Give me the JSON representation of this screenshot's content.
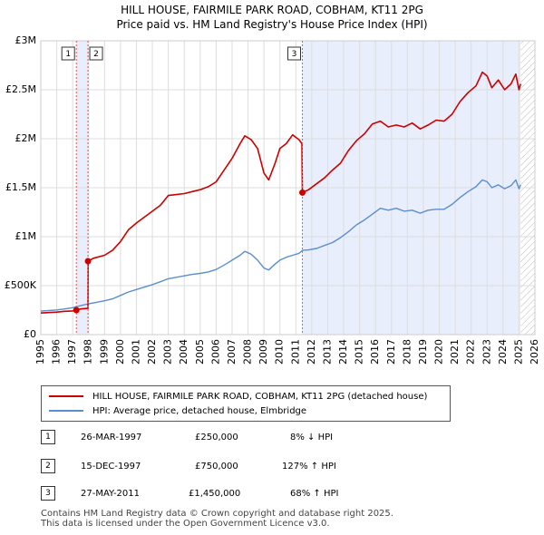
{
  "title_line1": "HILL HOUSE, FAIRMILE PARK ROAD, COBHAM, KT11 2PG",
  "title_line2": "Price paid vs. HM Land Registry's House Price Index (HPI)",
  "chart_data": {
    "type": "line",
    "xlim": [
      1995,
      2026
    ],
    "ylim": [
      0,
      3000000
    ],
    "x_ticks": [
      1995,
      1996,
      1997,
      1998,
      1999,
      2000,
      2001,
      2002,
      2003,
      2004,
      2005,
      2006,
      2007,
      2008,
      2009,
      2010,
      2011,
      2012,
      2013,
      2014,
      2015,
      2016,
      2017,
      2018,
      2019,
      2020,
      2021,
      2022,
      2023,
      2024,
      2025,
      2026
    ],
    "y_ticks": [
      {
        "value": 0,
        "label": "£0"
      },
      {
        "value": 500000,
        "label": "£500K"
      },
      {
        "value": 1000000,
        "label": "£1M"
      },
      {
        "value": 1500000,
        "label": "£1.5M"
      },
      {
        "value": 2000000,
        "label": "£2M"
      },
      {
        "value": 2500000,
        "label": "£2.5M"
      },
      {
        "value": 3000000,
        "label": "£3M"
      }
    ],
    "grid": true,
    "shaded_ranges": [
      {
        "from": 1997.23,
        "to": 1997.96
      },
      {
        "from": 2011.41,
        "to": 2025.1
      }
    ],
    "hatched_range": {
      "from": 2025.1,
      "to": 2026
    },
    "markers": [
      {
        "label": "1",
        "x": 1997.23
      },
      {
        "label": "2",
        "x": 1997.96
      },
      {
        "label": "3",
        "x": 2011.41
      }
    ],
    "sale_points": [
      {
        "x": 1997.23,
        "y": 250000
      },
      {
        "x": 1997.96,
        "y": 750000
      },
      {
        "x": 2011.41,
        "y": 1450000
      }
    ],
    "series": [
      {
        "name": "HILL HOUSE, FAIRMILE PARK ROAD, COBHAM, KT11 2PG (detached house)",
        "color": "#cc0000",
        "points": [
          [
            1995,
            220000
          ],
          [
            1995.5,
            225000
          ],
          [
            1996,
            230000
          ],
          [
            1996.5,
            238000
          ],
          [
            1997.0,
            242000
          ],
          [
            1997.23,
            250000
          ],
          [
            1997.5,
            262000
          ],
          [
            1997.96,
            268000
          ],
          [
            1997.97,
            750000
          ],
          [
            1998.3,
            780000
          ],
          [
            1999,
            810000
          ],
          [
            1999.5,
            860000
          ],
          [
            2000,
            950000
          ],
          [
            2000.5,
            1070000
          ],
          [
            2001,
            1140000
          ],
          [
            2001.5,
            1200000
          ],
          [
            2002,
            1260000
          ],
          [
            2002.5,
            1320000
          ],
          [
            2003,
            1420000
          ],
          [
            2003.5,
            1430000
          ],
          [
            2004,
            1440000
          ],
          [
            2004.5,
            1460000
          ],
          [
            2005,
            1480000
          ],
          [
            2005.5,
            1510000
          ],
          [
            2006,
            1560000
          ],
          [
            2006.5,
            1680000
          ],
          [
            2007,
            1800000
          ],
          [
            2007.5,
            1950000
          ],
          [
            2007.8,
            2030000
          ],
          [
            2008.2,
            1990000
          ],
          [
            2008.6,
            1900000
          ],
          [
            2009.0,
            1650000
          ],
          [
            2009.3,
            1580000
          ],
          [
            2009.7,
            1750000
          ],
          [
            2010,
            1900000
          ],
          [
            2010.4,
            1950000
          ],
          [
            2010.8,
            2040000
          ],
          [
            2011.2,
            1990000
          ],
          [
            2011.38,
            1950000
          ],
          [
            2011.41,
            1450000
          ],
          [
            2011.8,
            1480000
          ],
          [
            2012.3,
            1540000
          ],
          [
            2012.8,
            1600000
          ],
          [
            2013.3,
            1680000
          ],
          [
            2013.8,
            1750000
          ],
          [
            2014.3,
            1880000
          ],
          [
            2014.8,
            1980000
          ],
          [
            2015.3,
            2050000
          ],
          [
            2015.8,
            2150000
          ],
          [
            2016.3,
            2180000
          ],
          [
            2016.8,
            2120000
          ],
          [
            2017.3,
            2140000
          ],
          [
            2017.8,
            2120000
          ],
          [
            2018.3,
            2160000
          ],
          [
            2018.8,
            2100000
          ],
          [
            2019.3,
            2140000
          ],
          [
            2019.8,
            2190000
          ],
          [
            2020.3,
            2180000
          ],
          [
            2020.8,
            2250000
          ],
          [
            2021.3,
            2380000
          ],
          [
            2021.8,
            2470000
          ],
          [
            2022.3,
            2540000
          ],
          [
            2022.7,
            2680000
          ],
          [
            2023.0,
            2640000
          ],
          [
            2023.3,
            2520000
          ],
          [
            2023.7,
            2600000
          ],
          [
            2024.1,
            2500000
          ],
          [
            2024.5,
            2560000
          ],
          [
            2024.8,
            2660000
          ],
          [
            2025.0,
            2500000
          ],
          [
            2025.1,
            2560000
          ]
        ]
      },
      {
        "name": "HPI: Average price, detached house, Elmbridge",
        "color": "#5b8ecf",
        "points": [
          [
            1995,
            240000
          ],
          [
            1995.5,
            245000
          ],
          [
            1996,
            252000
          ],
          [
            1996.5,
            262000
          ],
          [
            1997,
            275000
          ],
          [
            1997.5,
            295000
          ],
          [
            1998,
            315000
          ],
          [
            1998.5,
            330000
          ],
          [
            1999,
            345000
          ],
          [
            1999.5,
            365000
          ],
          [
            2000,
            400000
          ],
          [
            2000.5,
            435000
          ],
          [
            2001,
            460000
          ],
          [
            2001.5,
            485000
          ],
          [
            2002,
            510000
          ],
          [
            2002.5,
            540000
          ],
          [
            2003,
            570000
          ],
          [
            2003.5,
            585000
          ],
          [
            2004,
            600000
          ],
          [
            2004.5,
            615000
          ],
          [
            2005,
            625000
          ],
          [
            2005.5,
            640000
          ],
          [
            2006,
            665000
          ],
          [
            2006.5,
            710000
          ],
          [
            2007,
            760000
          ],
          [
            2007.5,
            810000
          ],
          [
            2007.8,
            850000
          ],
          [
            2008.2,
            820000
          ],
          [
            2008.6,
            760000
          ],
          [
            2009.0,
            680000
          ],
          [
            2009.3,
            660000
          ],
          [
            2009.7,
            720000
          ],
          [
            2010,
            760000
          ],
          [
            2010.4,
            790000
          ],
          [
            2010.8,
            810000
          ],
          [
            2011.2,
            830000
          ],
          [
            2011.41,
            860000
          ],
          [
            2011.8,
            865000
          ],
          [
            2012.3,
            880000
          ],
          [
            2012.8,
            910000
          ],
          [
            2013.3,
            940000
          ],
          [
            2013.8,
            990000
          ],
          [
            2014.3,
            1050000
          ],
          [
            2014.8,
            1120000
          ],
          [
            2015.3,
            1170000
          ],
          [
            2015.8,
            1230000
          ],
          [
            2016.3,
            1290000
          ],
          [
            2016.8,
            1270000
          ],
          [
            2017.3,
            1290000
          ],
          [
            2017.8,
            1260000
          ],
          [
            2018.3,
            1270000
          ],
          [
            2018.8,
            1240000
          ],
          [
            2019.3,
            1270000
          ],
          [
            2019.8,
            1280000
          ],
          [
            2020.3,
            1280000
          ],
          [
            2020.8,
            1330000
          ],
          [
            2021.3,
            1400000
          ],
          [
            2021.8,
            1460000
          ],
          [
            2022.3,
            1510000
          ],
          [
            2022.7,
            1580000
          ],
          [
            2023.0,
            1560000
          ],
          [
            2023.3,
            1500000
          ],
          [
            2023.7,
            1530000
          ],
          [
            2024.1,
            1490000
          ],
          [
            2024.5,
            1520000
          ],
          [
            2024.8,
            1580000
          ],
          [
            2025.0,
            1490000
          ],
          [
            2025.1,
            1530000
          ]
        ]
      }
    ]
  },
  "legend": [
    {
      "label": "HILL HOUSE, FAIRMILE PARK ROAD, COBHAM, KT11 2PG (detached house)",
      "color": "#cc0000"
    },
    {
      "label": "HPI: Average price, detached house, Elmbridge",
      "color": "#5b8ecf"
    }
  ],
  "transactions": [
    {
      "num": "1",
      "date": "26-MAR-1997",
      "price": "£250,000",
      "hpi": "8% ↓ HPI"
    },
    {
      "num": "2",
      "date": "15-DEC-1997",
      "price": "£750,000",
      "hpi": "127% ↑ HPI"
    },
    {
      "num": "3",
      "date": "27-MAY-2011",
      "price": "£1,450,000",
      "hpi": "68% ↑ HPI"
    }
  ],
  "footer_line1": "Contains HM Land Registry data © Crown copyright and database right 2025.",
  "footer_line2": "This data is licensed under the Open Government Licence v3.0."
}
